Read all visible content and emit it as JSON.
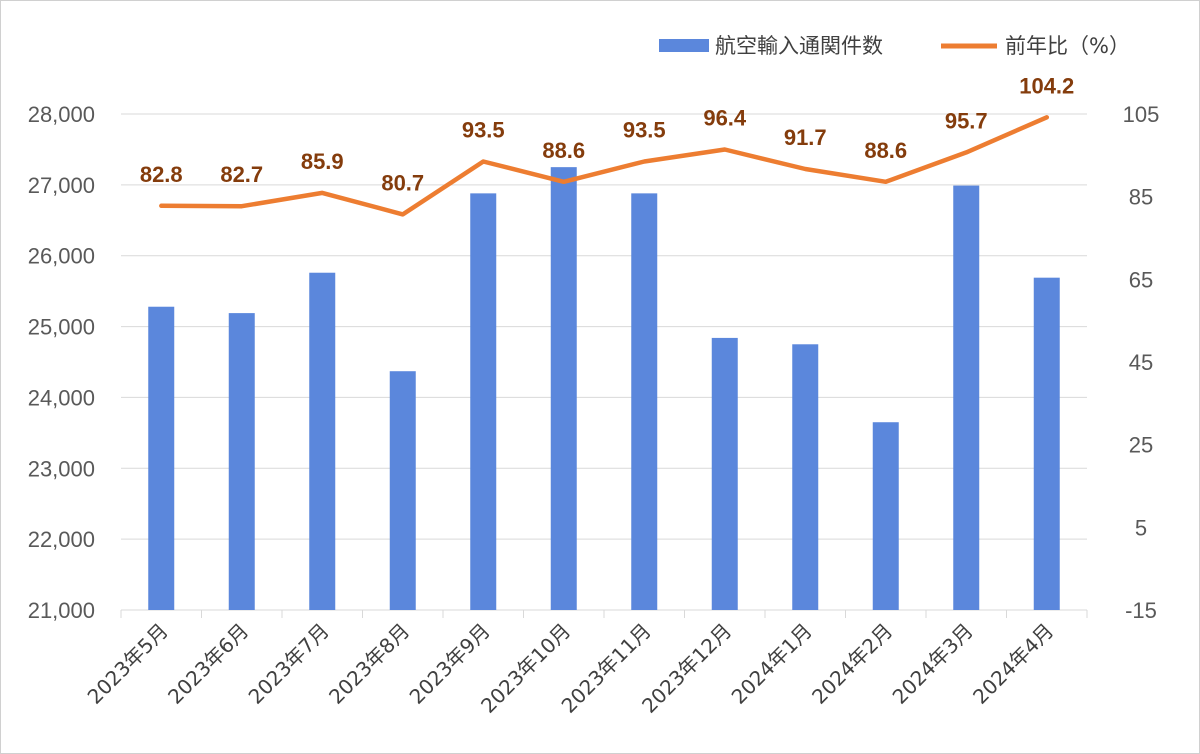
{
  "chart_data": {
    "type": "bar",
    "categories": [
      "2023年5月",
      "2023年6月",
      "2023年7月",
      "2023年8月",
      "2023年9月",
      "2023年10月",
      "2023年11月",
      "2023年12月",
      "2024年1月",
      "2024年2月",
      "2024年3月",
      "2024年4月"
    ],
    "series": [
      {
        "name": "航空輸入通関件数",
        "type": "bar",
        "axis": "left",
        "color": "#5b87dc",
        "values": [
          25280,
          25190,
          25760,
          24370,
          26880,
          27250,
          26880,
          24840,
          24750,
          23650,
          26990,
          25690
        ]
      },
      {
        "name": "前年比（%）",
        "type": "line",
        "axis": "right",
        "color": "#ed7d31",
        "label_color": "#843c0c",
        "values": [
          82.8,
          82.7,
          85.9,
          80.7,
          93.5,
          88.6,
          93.5,
          96.4,
          91.7,
          88.6,
          95.7,
          104.2
        ],
        "labels": [
          "82.8",
          "82.7",
          "85.9",
          "80.7",
          "93.5",
          "88.6",
          "93.5",
          "96.4",
          "91.7",
          "88.6",
          "95.7",
          "104.2"
        ]
      }
    ],
    "y_left": {
      "min": 21000,
      "max": 28000,
      "step": 1000,
      "tick_labels": [
        "21,000",
        "22,000",
        "23,000",
        "24,000",
        "25,000",
        "26,000",
        "27,000",
        "28,000"
      ]
    },
    "y_right": {
      "min": -15,
      "max": 105,
      "step": 20,
      "tick_labels": [
        "-15",
        "5",
        "25",
        "45",
        "65",
        "85",
        "105"
      ]
    },
    "grid": true,
    "legend_position": "top-right",
    "title": "",
    "xlabel": "",
    "ylabel": ""
  }
}
